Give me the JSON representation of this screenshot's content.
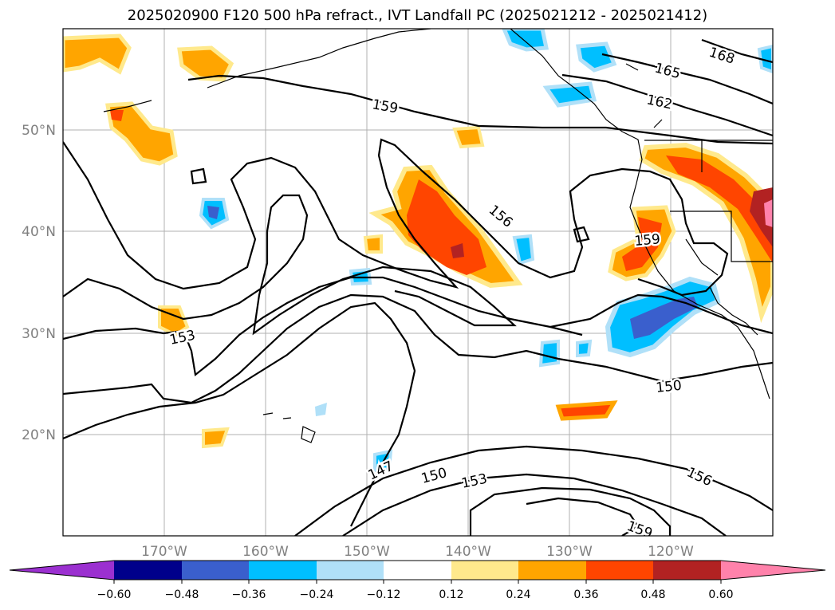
{
  "title": "2025020900 F120 500 hPa refract., IVT Landfall PC (2025021212 - 2025021412)",
  "map": {
    "lat_labels": [
      "50°N",
      "40°N",
      "30°N",
      "20°N"
    ],
    "lon_labels": [
      "170°W",
      "160°W",
      "150°W",
      "140°W",
      "130°W",
      "120°W"
    ],
    "contour_labels": [
      "168",
      "165",
      "162",
      "159",
      "156",
      "159",
      "153",
      "150",
      "147",
      "150",
      "153",
      "156",
      "159"
    ]
  },
  "colorbar": {
    "ticks": [
      "−0.60",
      "−0.48",
      "−0.36",
      "−0.24",
      "−0.12",
      "0.12",
      "0.24",
      "0.36",
      "0.48",
      "0.60"
    ],
    "colors": [
      "#9b30d0",
      "#00008b",
      "#3a5fcd",
      "#00bfff",
      "#b0e0f8",
      "#ffffff",
      "#ffe98c",
      "#ffa500",
      "#ff4500",
      "#b22222",
      "#ff82ab"
    ]
  }
}
